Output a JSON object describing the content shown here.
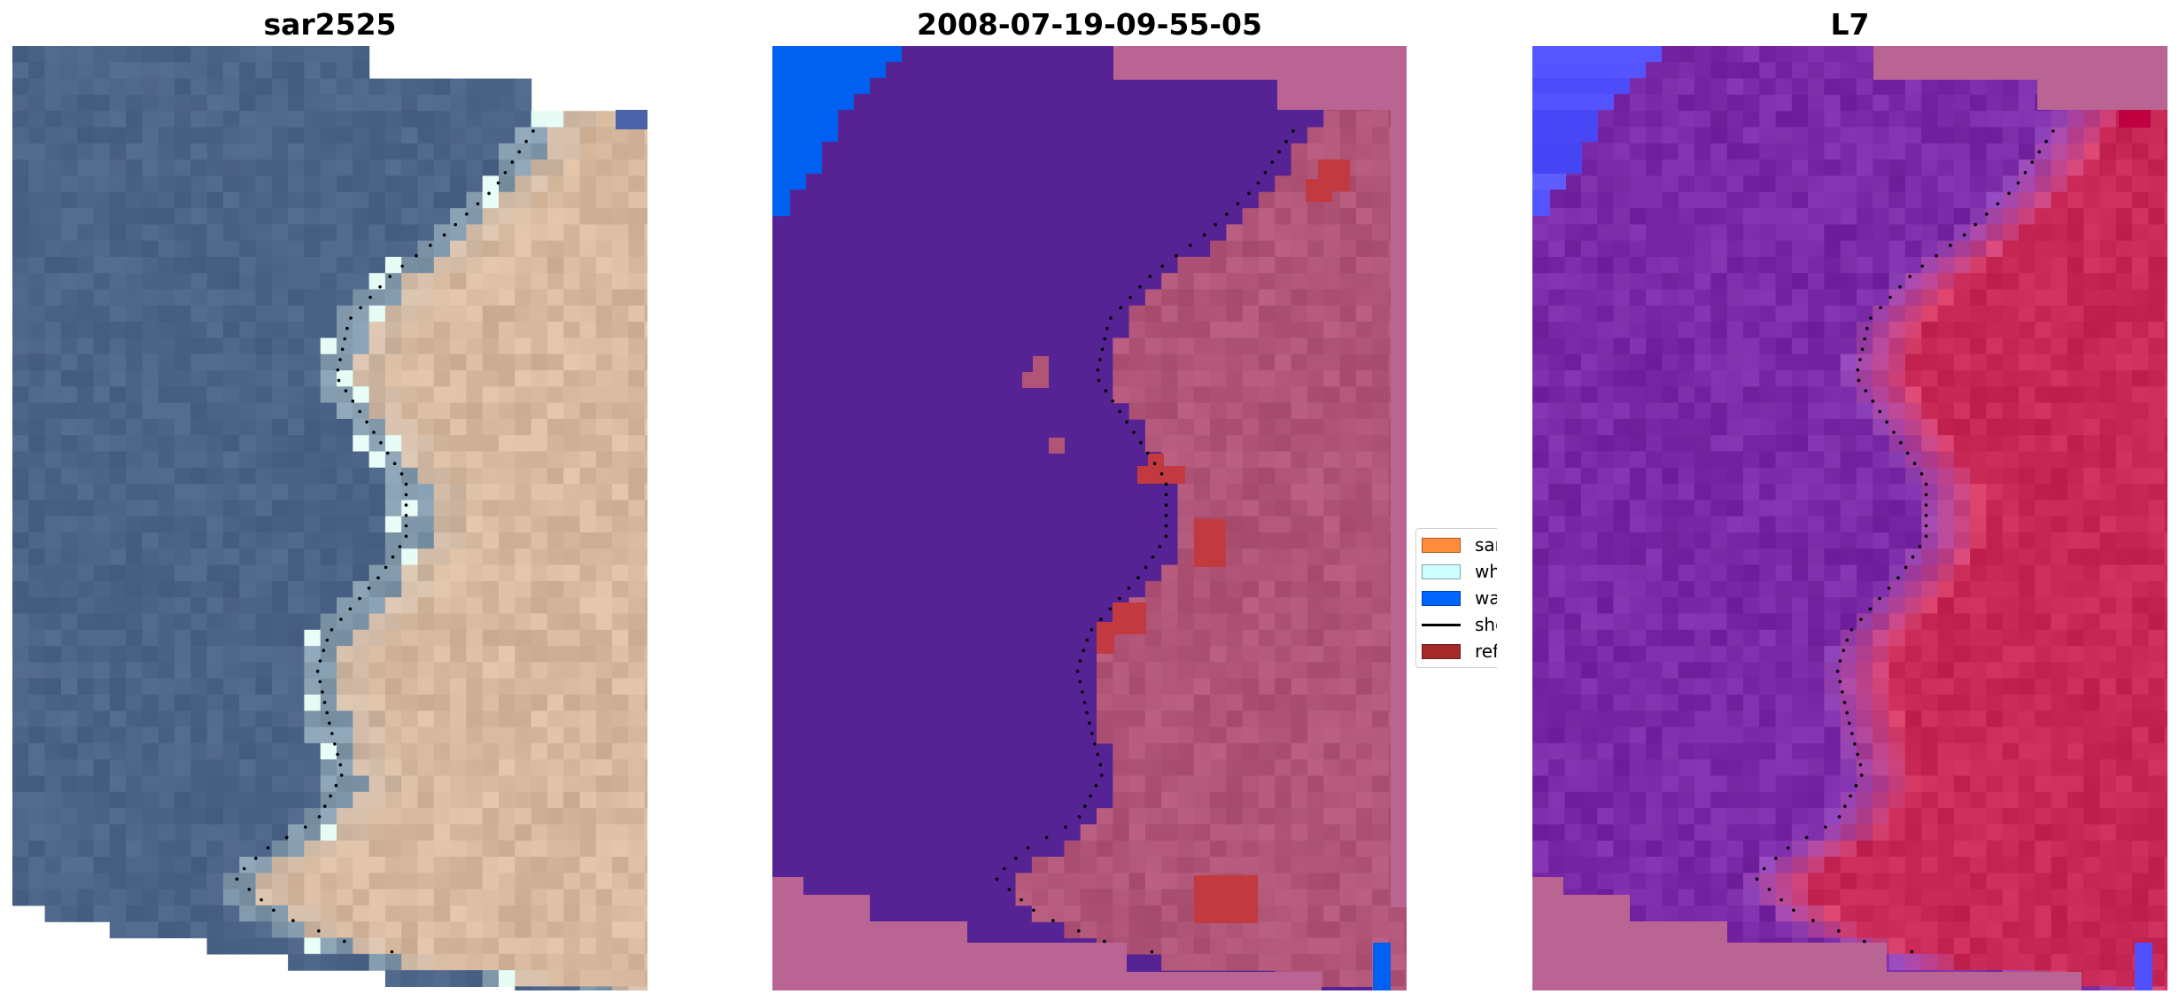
{
  "panels": [
    {
      "title": "sar2525"
    },
    {
      "title": "2008-07-19-09-55-05"
    },
    {
      "title": "L7"
    }
  ],
  "legend": {
    "items": [
      {
        "label": "sand",
        "color": "#ff8c3a",
        "kind": "patch"
      },
      {
        "label": "whitewater",
        "color": "#ccffff",
        "kind": "patch"
      },
      {
        "label": "water",
        "color": "#0066ff",
        "kind": "patch"
      },
      {
        "label": "shoreline",
        "color": "#000000",
        "kind": "line"
      },
      {
        "label": "reference",
        "color": "#a52a2a",
        "kind": "patch"
      }
    ]
  },
  "colors": {
    "sea_rgb": "#4c6488",
    "land_rgb": "#d7b9a0",
    "whitewater_rgb": "#dff5ee",
    "class_water_bg": "#562395",
    "class_land": "#b05577",
    "class_nodata": "#ba6493",
    "class_water": "#0060f0",
    "class_reference": "#c23a40",
    "index_water": "#7a2aa6",
    "index_land": "#c82855",
    "index_nodata": "#ba6493",
    "index_blue": "#5050ff"
  }
}
